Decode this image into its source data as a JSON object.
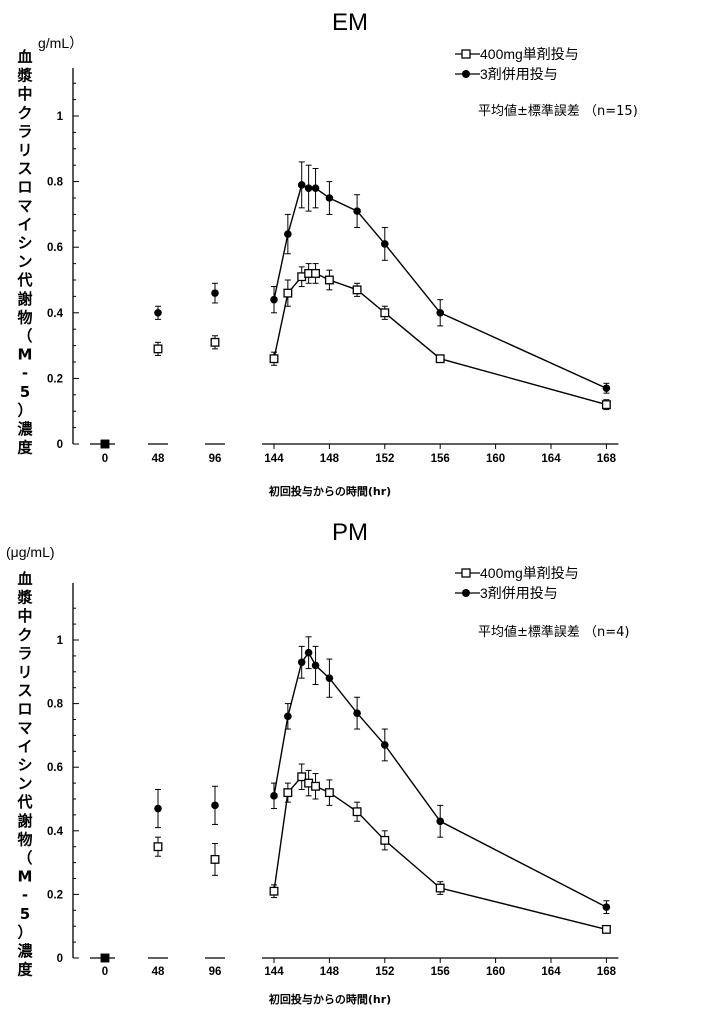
{
  "chart_data": [
    {
      "type": "line",
      "title": "EM",
      "unit": "g/mL）",
      "ylabel": "血漿中クラリスロマイシン代謝物（M-5）濃度",
      "xlabel": "初回投与からの時間(hr)",
      "x_ticks": [
        "0",
        "48",
        "96",
        "144",
        "148",
        "152",
        "156",
        "160",
        "164",
        "168"
      ],
      "y_ticks": [
        "0",
        "0.2",
        "0.4",
        "0.6",
        "0.8",
        "1"
      ],
      "ylim": [
        0,
        1.1
      ],
      "note": "平均値±標準誤差 （n=15)",
      "series": [
        {
          "name": "400mg単剤投与",
          "marker": "open-square",
          "points": [
            {
              "x": "0",
              "y": 0.0,
              "err": 0
            },
            {
              "x": "48",
              "y": 0.29,
              "err": 0.02
            },
            {
              "x": "96",
              "y": 0.31,
              "err": 0.02
            },
            {
              "x": "144",
              "y": 0.26,
              "err": 0.02
            },
            {
              "x": "145",
              "y": 0.46,
              "err": 0.04
            },
            {
              "x": "146",
              "y": 0.51,
              "err": 0.03
            },
            {
              "x": "146.5",
              "y": 0.52,
              "err": 0.03
            },
            {
              "x": "147",
              "y": 0.52,
              "err": 0.03
            },
            {
              "x": "148",
              "y": 0.5,
              "err": 0.03
            },
            {
              "x": "150",
              "y": 0.47,
              "err": 0.02
            },
            {
              "x": "152",
              "y": 0.4,
              "err": 0.02
            },
            {
              "x": "156",
              "y": 0.26,
              "err": 0.01
            },
            {
              "x": "168",
              "y": 0.12,
              "err": 0.015
            }
          ]
        },
        {
          "name": "3剤併用投与",
          "marker": "filled-circle",
          "points": [
            {
              "x": "0",
              "y": 0.0,
              "err": 0
            },
            {
              "x": "48",
              "y": 0.4,
              "err": 0.02
            },
            {
              "x": "96",
              "y": 0.46,
              "err": 0.03
            },
            {
              "x": "144",
              "y": 0.44,
              "err": 0.04
            },
            {
              "x": "145",
              "y": 0.64,
              "err": 0.06
            },
            {
              "x": "146",
              "y": 0.79,
              "err": 0.07
            },
            {
              "x": "146.5",
              "y": 0.78,
              "err": 0.07
            },
            {
              "x": "147",
              "y": 0.78,
              "err": 0.06
            },
            {
              "x": "148",
              "y": 0.75,
              "err": 0.05
            },
            {
              "x": "150",
              "y": 0.71,
              "err": 0.05
            },
            {
              "x": "152",
              "y": 0.61,
              "err": 0.05
            },
            {
              "x": "156",
              "y": 0.4,
              "err": 0.04
            },
            {
              "x": "168",
              "y": 0.17,
              "err": 0.015
            }
          ]
        }
      ]
    },
    {
      "type": "line",
      "title": "PM",
      "unit": "(μg/mL)",
      "ylabel": "血漿中クラリスロマイシン代謝物（M-5）濃度",
      "xlabel": "初回投与からの時間(hr)",
      "x_ticks": [
        "0",
        "48",
        "96",
        "144",
        "148",
        "152",
        "156",
        "160",
        "164",
        "168"
      ],
      "y_ticks": [
        "0",
        "0.2",
        "0.4",
        "0.6",
        "0.8",
        "1"
      ],
      "ylim": [
        0,
        1.1
      ],
      "note": "平均値±標準誤差 （n=4)",
      "series": [
        {
          "name": "400mg単剤投与",
          "marker": "open-square",
          "points": [
            {
              "x": "0",
              "y": 0.0,
              "err": 0
            },
            {
              "x": "48",
              "y": 0.35,
              "err": 0.03
            },
            {
              "x": "96",
              "y": 0.31,
              "err": 0.05
            },
            {
              "x": "144",
              "y": 0.21,
              "err": 0.02
            },
            {
              "x": "145",
              "y": 0.52,
              "err": 0.03
            },
            {
              "x": "146",
              "y": 0.57,
              "err": 0.04
            },
            {
              "x": "146.5",
              "y": 0.55,
              "err": 0.04
            },
            {
              "x": "147",
              "y": 0.54,
              "err": 0.04
            },
            {
              "x": "148",
              "y": 0.52,
              "err": 0.04
            },
            {
              "x": "150",
              "y": 0.46,
              "err": 0.03
            },
            {
              "x": "152",
              "y": 0.37,
              "err": 0.03
            },
            {
              "x": "156",
              "y": 0.22,
              "err": 0.02
            },
            {
              "x": "168",
              "y": 0.09,
              "err": 0.01
            }
          ]
        },
        {
          "name": "3剤併用投与",
          "marker": "filled-circle",
          "points": [
            {
              "x": "0",
              "y": 0.0,
              "err": 0
            },
            {
              "x": "48",
              "y": 0.47,
              "err": 0.06
            },
            {
              "x": "96",
              "y": 0.48,
              "err": 0.06
            },
            {
              "x": "144",
              "y": 0.51,
              "err": 0.04
            },
            {
              "x": "145",
              "y": 0.76,
              "err": 0.04
            },
            {
              "x": "146",
              "y": 0.93,
              "err": 0.05
            },
            {
              "x": "146.5",
              "y": 0.96,
              "err": 0.05
            },
            {
              "x": "147",
              "y": 0.92,
              "err": 0.06
            },
            {
              "x": "148",
              "y": 0.88,
              "err": 0.06
            },
            {
              "x": "150",
              "y": 0.77,
              "err": 0.05
            },
            {
              "x": "152",
              "y": 0.67,
              "err": 0.05
            },
            {
              "x": "156",
              "y": 0.43,
              "err": 0.05
            },
            {
              "x": "168",
              "y": 0.16,
              "err": 0.02
            }
          ]
        }
      ]
    }
  ]
}
